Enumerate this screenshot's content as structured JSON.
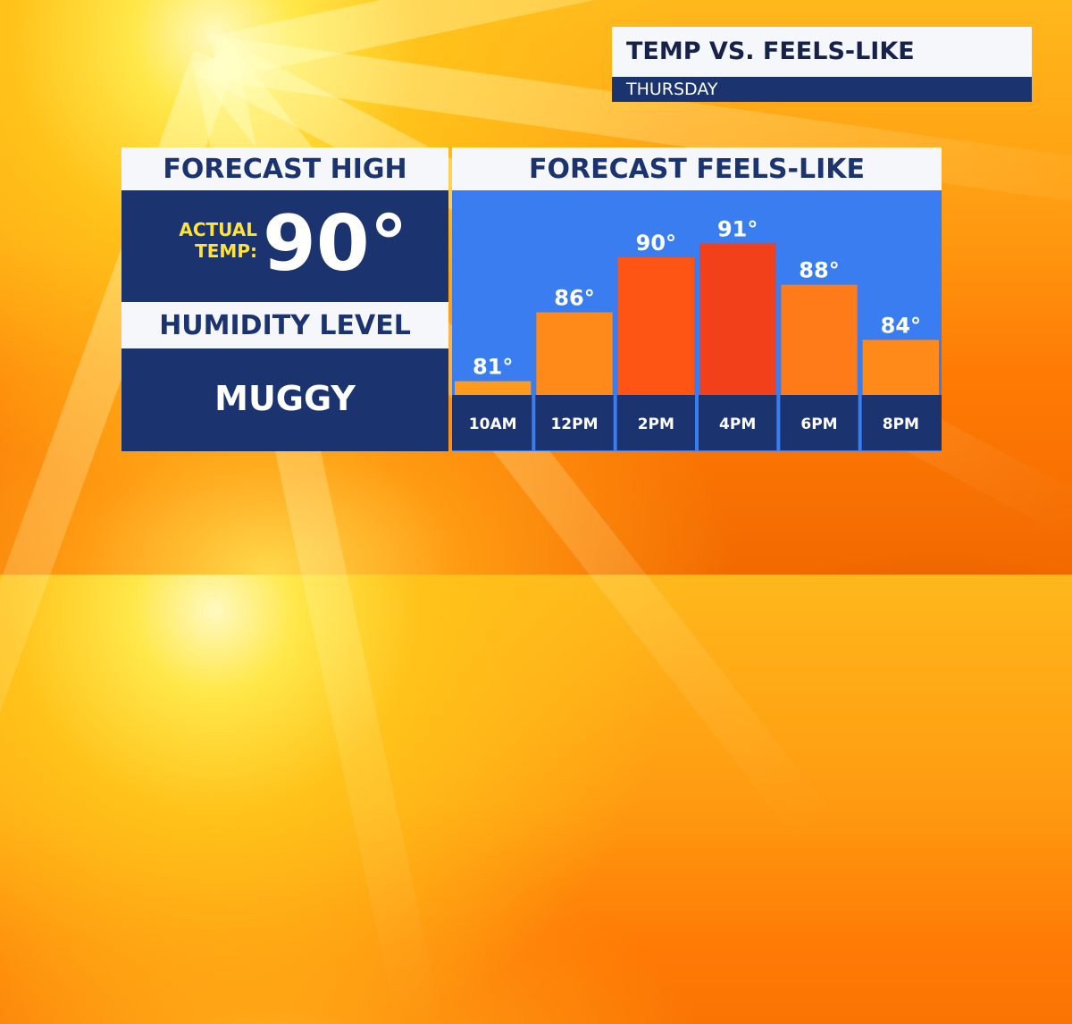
{
  "header": {
    "title": "TEMP VS. FEELS-LIKE",
    "subtitle": "THURSDAY"
  },
  "forecast_high": {
    "title": "FORECAST HIGH",
    "label_line1": "ACTUAL",
    "label_line2": "TEMP:",
    "value": "90°"
  },
  "humidity": {
    "title": "HUMIDITY LEVEL",
    "value": "MUGGY"
  },
  "colors": {
    "navy": "#1b3470",
    "chart_bg": "#3a7df0",
    "bar_light": "#ff8a1a",
    "bar_mid": "#ff5514",
    "bar_hot": "#f2401a",
    "label_yellow": "#ffe23a"
  },
  "chart_data": {
    "type": "bar",
    "title": "FORECAST FEELS-LIKE",
    "categories": [
      "10AM",
      "12PM",
      "2PM",
      "4PM",
      "6PM",
      "8PM"
    ],
    "values": [
      81,
      86,
      90,
      91,
      88,
      84
    ],
    "value_labels": [
      "81°",
      "86°",
      "90°",
      "91°",
      "88°",
      "84°"
    ],
    "bar_colors": [
      "#ff9a1c",
      "#ff8a1a",
      "#ff5514",
      "#f2401a",
      "#ff7a18",
      "#ff8a1a"
    ],
    "xlabel": "",
    "ylabel": "",
    "ylim": [
      80,
      92
    ],
    "grid": false,
    "legend": "none"
  }
}
